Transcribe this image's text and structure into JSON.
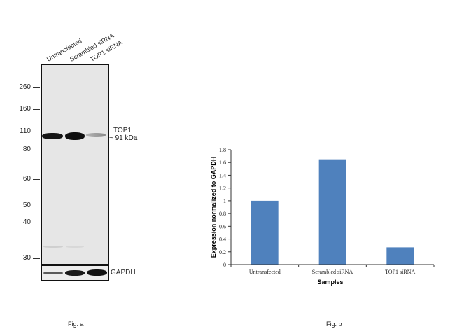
{
  "fig_a": {
    "lanes": [
      "Untransfected",
      "Scrambled siRNA",
      "TOP1 siRNA"
    ],
    "mw_markers": [
      "260",
      "160",
      "110",
      "80",
      "60",
      "50",
      "40",
      "30"
    ],
    "target_label": "TOP1",
    "target_size": "~ 91 kDa",
    "control_label": "GAPDH",
    "caption": "Fig. a"
  },
  "fig_b": {
    "caption": "Fig. b"
  },
  "chart_data": {
    "type": "bar",
    "categories": [
      "Untransfected",
      "Scrambled siRNA",
      "TOP1 siRNA"
    ],
    "values": [
      1.0,
      1.65,
      0.27
    ],
    "xlabel": "Samples",
    "ylabel": "Expression normalized to GAPDH",
    "ylim": [
      0,
      1.8
    ],
    "yticks": [
      0,
      0.2,
      0.4,
      0.6,
      0.8,
      1,
      1.2,
      1.4,
      1.6,
      1.8
    ],
    "ytick_labels": [
      "0",
      "0.2",
      "0.4",
      "0.6",
      "0.8",
      "1",
      "1.2",
      "1.4",
      "1.6",
      "1.8"
    ],
    "grid": false,
    "legend": "none",
    "bar_color": "#4f81bd"
  }
}
